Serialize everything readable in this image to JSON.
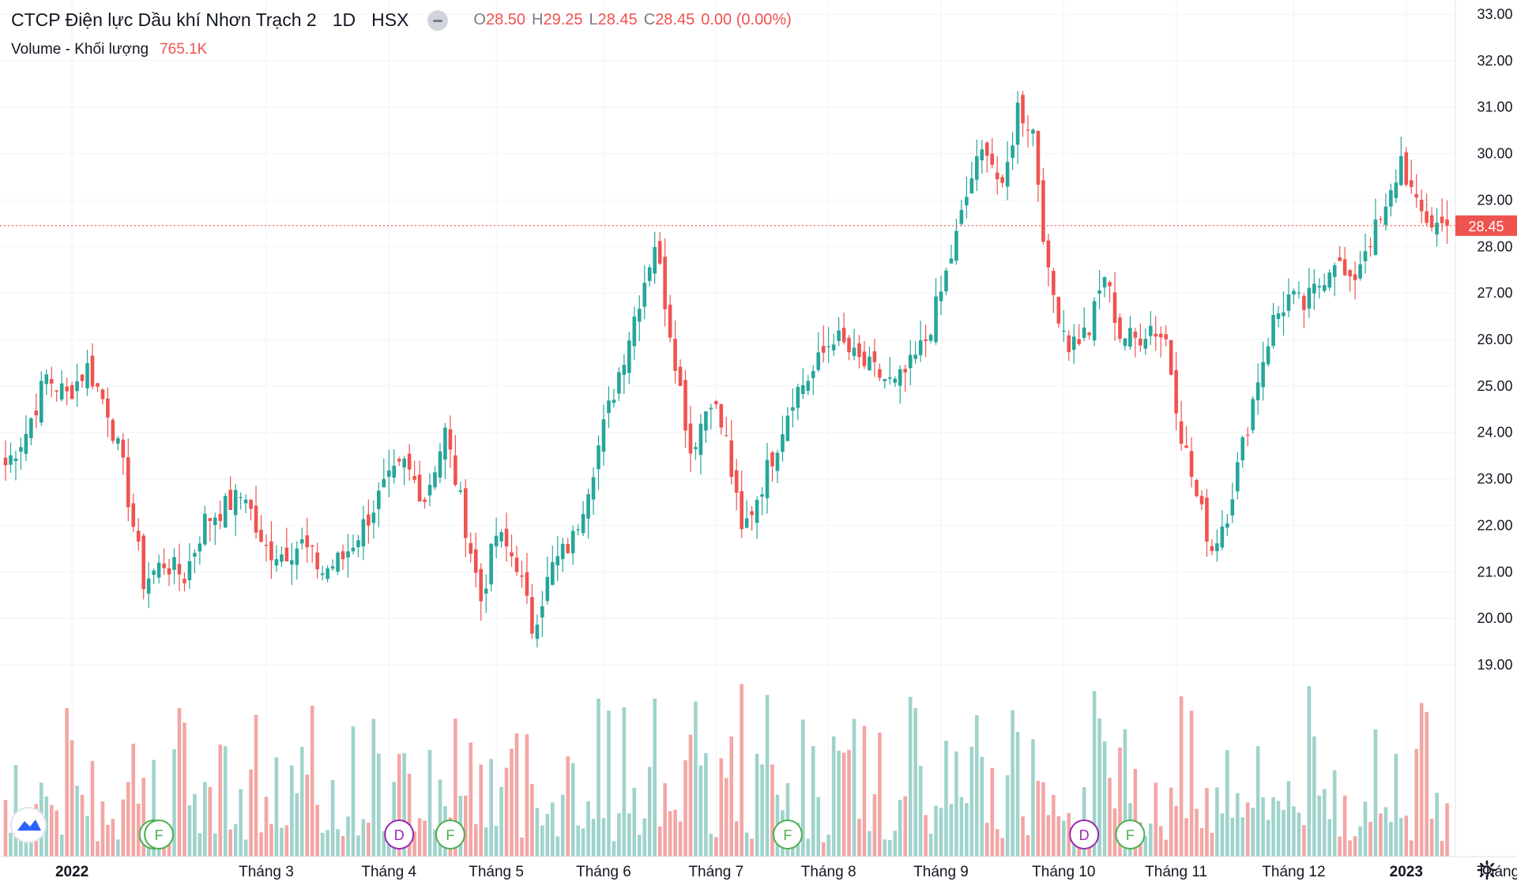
{
  "header": {
    "symbol_name": "CTCP Điện lực Dầu khí Nhơn Trạch 2",
    "interval": "1D",
    "exchange": "HSX",
    "ohlc": {
      "o_label": "O",
      "o_value": "28.50",
      "h_label": "H",
      "h_value": "29.25",
      "l_label": "L",
      "l_value": "28.45",
      "c_label": "C",
      "c_value": "28.45",
      "change": "0.00 (0.00%)"
    }
  },
  "volume_legend": {
    "label": "Volume - Khối lượng",
    "value": "765.1K"
  },
  "colors": {
    "up": "#26a69a",
    "down": "#ef5350",
    "up_vol": "#9fd3cc",
    "down_vol": "#f3a6a4",
    "grid": "#f0f3fa",
    "text": "#131722"
  },
  "settings_icon": "gear-icon",
  "chart_data": {
    "type": "candlestick",
    "y_axis": {
      "ticks": [
        "33.00",
        "32.00",
        "31.00",
        "30.00",
        "29.00",
        "28.00",
        "27.00",
        "26.00",
        "25.00",
        "24.00",
        "23.00",
        "22.00",
        "21.00",
        "20.00",
        "19.00"
      ],
      "ylim": [
        18.3,
        33.2
      ]
    },
    "x_axis": {
      "labels": [
        "2022",
        "Tháng 3",
        "Tháng 4",
        "Tháng 5",
        "Tháng 6",
        "Tháng 7",
        "Tháng 8",
        "Tháng 9",
        "Tháng 10",
        "Tháng 11",
        "Tháng 12",
        "2023",
        "Tháng"
      ],
      "label_positions_bar_index": [
        13,
        51,
        75,
        96,
        117,
        139,
        161,
        183,
        207,
        229,
        252,
        274,
        292
      ]
    },
    "last_price": "28.45",
    "markers": [
      {
        "letter": "F",
        "bar": 29
      },
      {
        "letter": "F",
        "bar": 30
      },
      {
        "letter": "D",
        "bar": 77
      },
      {
        "letter": "F",
        "bar": 87
      },
      {
        "letter": "F",
        "bar": 153
      },
      {
        "letter": "D",
        "bar": 211
      },
      {
        "letter": "F",
        "bar": 220
      }
    ],
    "anchors": [
      [
        0,
        23.3
      ],
      [
        4,
        24.0
      ],
      [
        8,
        25.2
      ],
      [
        12,
        24.8
      ],
      [
        16,
        25.4
      ],
      [
        20,
        24.5
      ],
      [
        23,
        23.2
      ],
      [
        27,
        20.8
      ],
      [
        31,
        21.2
      ],
      [
        35,
        20.9
      ],
      [
        39,
        22.1
      ],
      [
        43,
        22.4
      ],
      [
        47,
        22.7
      ],
      [
        50,
        21.5
      ],
      [
        54,
        21.4
      ],
      [
        58,
        21.6
      ],
      [
        62,
        21.0
      ],
      [
        66,
        21.3
      ],
      [
        70,
        22.0
      ],
      [
        74,
        22.8
      ],
      [
        78,
        23.3
      ],
      [
        82,
        22.6
      ],
      [
        86,
        24.0
      ],
      [
        90,
        22.0
      ],
      [
        93,
        20.4
      ],
      [
        96,
        21.8
      ],
      [
        100,
        21.2
      ],
      [
        103,
        19.8
      ],
      [
        107,
        21.1
      ],
      [
        111,
        21.7
      ],
      [
        115,
        23.3
      ],
      [
        119,
        24.9
      ],
      [
        123,
        26.5
      ],
      [
        127,
        28.1
      ],
      [
        131,
        25.6
      ],
      [
        134,
        23.6
      ],
      [
        138,
        24.8
      ],
      [
        141,
        23.8
      ],
      [
        144,
        21.8
      ],
      [
        148,
        22.9
      ],
      [
        151,
        23.8
      ],
      [
        154,
        24.8
      ],
      [
        158,
        25.3
      ],
      [
        162,
        26.1
      ],
      [
        166,
        25.6
      ],
      [
        170,
        25.3
      ],
      [
        174,
        25.0
      ],
      [
        177,
        25.4
      ],
      [
        180,
        26.0
      ],
      [
        183,
        27.0
      ],
      [
        186,
        28.2
      ],
      [
        189,
        29.5
      ],
      [
        192,
        30.2
      ],
      [
        195,
        29.1
      ],
      [
        198,
        31.0
      ],
      [
        201,
        30.5
      ],
      [
        204,
        27.3
      ],
      [
        208,
        25.9
      ],
      [
        212,
        26.2
      ],
      [
        215,
        27.4
      ],
      [
        218,
        26.1
      ],
      [
        221,
        26.0
      ],
      [
        224,
        26.3
      ],
      [
        227,
        26.0
      ],
      [
        230,
        24.0
      ],
      [
        233,
        22.6
      ],
      [
        236,
        21.5
      ],
      [
        239,
        22.3
      ],
      [
        242,
        23.7
      ],
      [
        245,
        25.2
      ],
      [
        248,
        26.4
      ],
      [
        251,
        26.9
      ],
      [
        254,
        26.7
      ],
      [
        257,
        27.2
      ],
      [
        260,
        27.8
      ],
      [
        263,
        27.1
      ],
      [
        266,
        28.0
      ],
      [
        270,
        28.7
      ],
      [
        273,
        29.9
      ],
      [
        276,
        28.8
      ],
      [
        279,
        28.5
      ],
      [
        282,
        28.45
      ]
    ],
    "volume": {
      "max_ratio": 1.0,
      "typical_range": [
        0.08,
        0.95
      ]
    }
  }
}
